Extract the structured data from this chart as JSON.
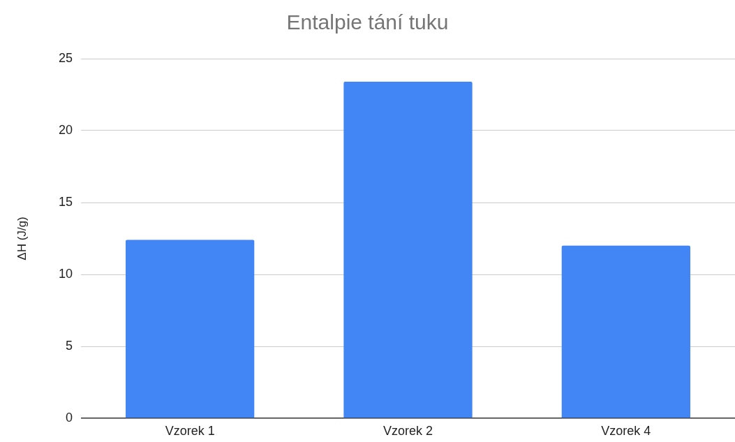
{
  "chart_data": {
    "type": "bar",
    "title": "Entalpie tání tuku",
    "ylabel": "ΔH (J/g)",
    "categories": [
      "Vzorek 1",
      "Vzorek 2",
      "Vzorek 4"
    ],
    "values": [
      12.4,
      23.4,
      12.0
    ],
    "color": "#4285f4",
    "ylim": [
      0,
      25
    ],
    "yticks": [
      0,
      5,
      10,
      15,
      20,
      25
    ],
    "grid": "y"
  }
}
